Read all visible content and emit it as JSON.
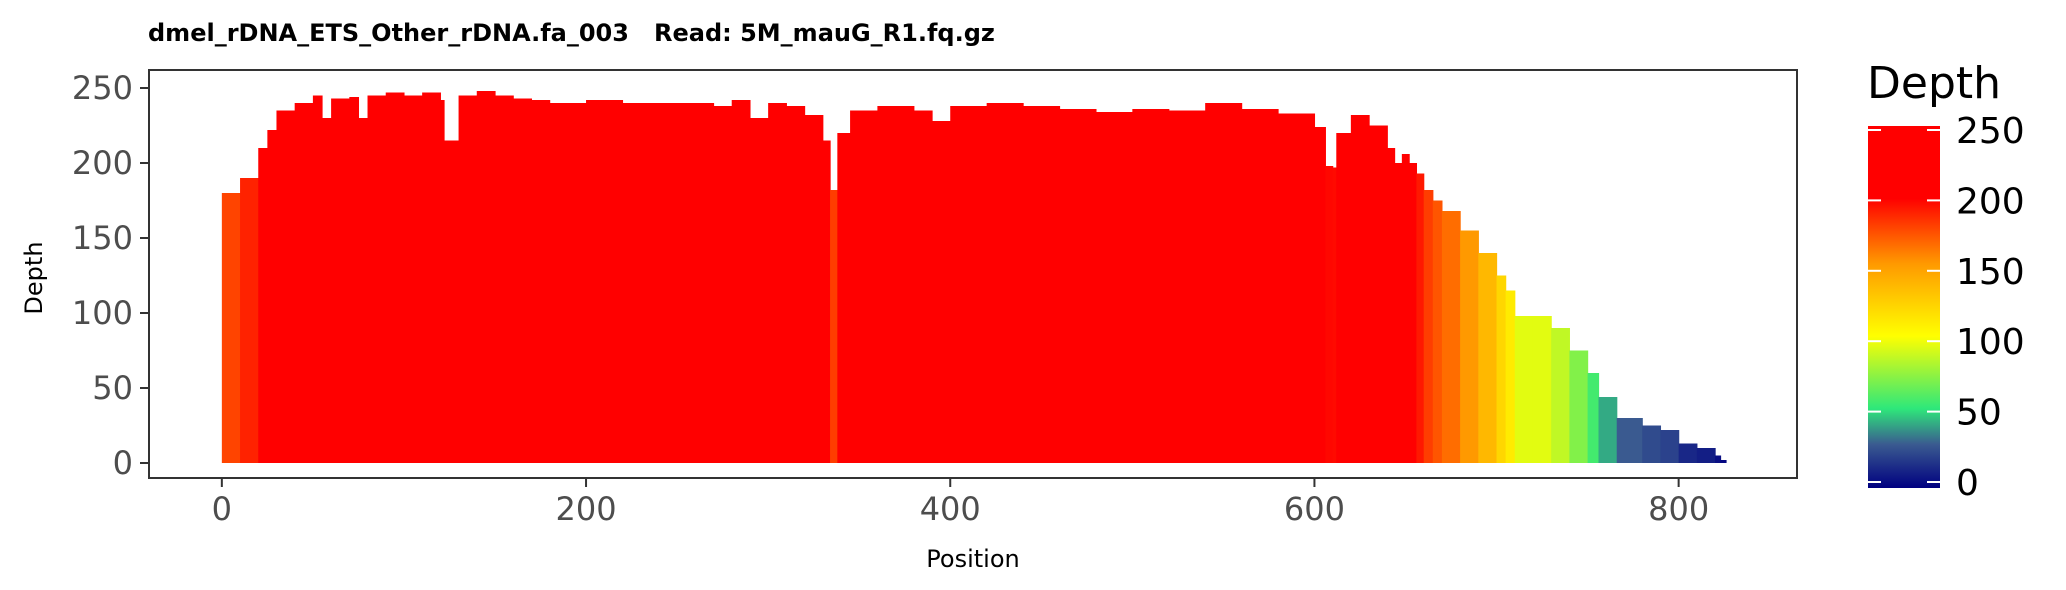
{
  "chart_data": {
    "type": "area",
    "title": "dmel_rDNA_ETS_Other_rDNA.fa_003   Read: 5M_mauG_R1.fq.gz",
    "xlabel": "Position",
    "ylabel": "Depth",
    "xlim": [
      -40,
      865
    ],
    "ylim": [
      -10,
      262
    ],
    "x_ticks": [
      0,
      200,
      400,
      600,
      800
    ],
    "y_ticks": [
      0,
      50,
      100,
      150,
      200,
      250
    ],
    "grid": false,
    "legend": {
      "title": "Depth",
      "position": "right",
      "ticks": [
        0,
        50,
        100,
        150,
        200,
        250
      ],
      "range": [
        0,
        250
      ],
      "colors": [
        "#000080",
        "#3a5a90",
        "#2ee87a",
        "#ffff00",
        "#ff9900",
        "#ff0000",
        "#ff0000"
      ]
    },
    "series": [
      {
        "x": [
          0,
          10,
          20,
          25,
          30,
          40,
          50,
          55,
          60,
          70,
          75,
          80,
          90,
          100,
          110,
          120,
          122,
          130,
          140,
          150,
          160,
          170,
          180,
          200,
          220,
          250,
          270,
          280,
          290,
          300,
          310,
          320,
          330,
          334,
          338,
          345,
          360,
          380,
          390,
          400,
          420,
          440,
          460,
          480,
          500,
          520,
          540,
          560,
          580,
          600,
          606,
          610,
          612,
          620,
          630,
          640,
          644,
          648,
          652,
          656,
          660,
          665,
          670,
          680,
          690,
          700,
          705,
          710,
          720,
          730,
          740,
          750,
          756,
          760,
          766,
          770,
          780,
          790,
          800,
          810,
          820,
          823
        ],
        "y": [
          180,
          190,
          210,
          222,
          235,
          240,
          245,
          230,
          243,
          244,
          230,
          245,
          247,
          245,
          247,
          242,
          215,
          245,
          248,
          245,
          243,
          242,
          240,
          242,
          240,
          240,
          238,
          242,
          230,
          240,
          238,
          232,
          215,
          182,
          220,
          235,
          238,
          235,
          228,
          238,
          240,
          238,
          236,
          234,
          236,
          235,
          240,
          236,
          233,
          224,
          198,
          197,
          220,
          232,
          225,
          210,
          200,
          206,
          200,
          193,
          182,
          175,
          168,
          155,
          140,
          125,
          115,
          98,
          98,
          90,
          75,
          60,
          44,
          44,
          30,
          30,
          25,
          22,
          13,
          10,
          5,
          2
        ]
      }
    ]
  }
}
